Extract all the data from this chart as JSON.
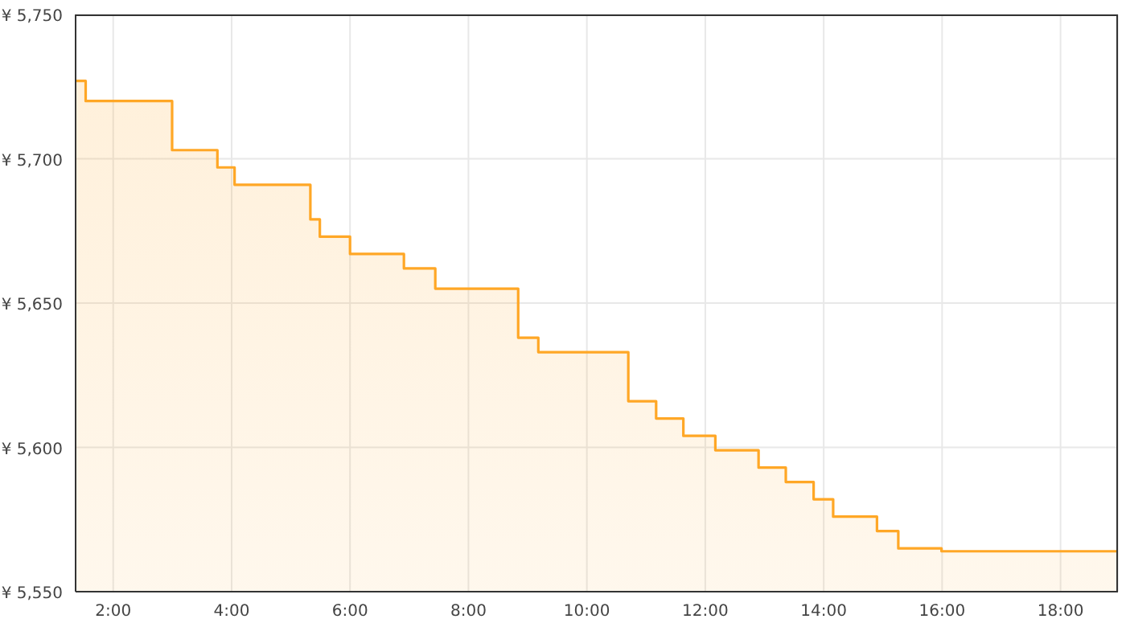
{
  "chart_data": {
    "type": "area",
    "x": [
      1.365,
      1.535,
      1.535,
      2.995,
      2.995,
      3.76,
      3.76,
      4.05,
      4.05,
      5.33,
      5.33,
      5.49,
      5.49,
      6.0,
      6.0,
      6.91,
      6.91,
      7.44,
      7.44,
      8.84,
      8.84,
      9.18,
      9.18,
      10.7,
      10.7,
      11.17,
      11.17,
      11.63,
      11.63,
      12.17,
      12.17,
      12.9,
      12.9,
      13.36,
      13.36,
      13.83,
      13.83,
      14.16,
      14.16,
      14.9,
      14.9,
      15.26,
      15.26,
      15.99,
      15.99,
      18.95
    ],
    "series": [
      {
        "color": "#ffa726",
        "values": [
          5727,
          5727,
          5720,
          5720,
          5703,
          5703,
          5697,
          5697,
          5691,
          5691,
          5679,
          5679,
          5673,
          5673,
          5667,
          5667,
          5662,
          5662,
          5655,
          5655,
          5638,
          5638,
          5633,
          5633,
          5616,
          5616,
          5610,
          5610,
          5604,
          5604,
          5599,
          5599,
          5593,
          5593,
          5588,
          5588,
          5582,
          5582,
          5576,
          5576,
          5571,
          5571,
          5565,
          5565,
          5564,
          5564
        ]
      }
    ],
    "xlim": [
      1.365,
      18.97
    ],
    "xticks": [
      {
        "value": 2,
        "label": "2:00"
      },
      {
        "value": 4,
        "label": "4:00"
      },
      {
        "value": 6,
        "label": "6:00"
      },
      {
        "value": 8,
        "label": "8:00"
      },
      {
        "value": 10,
        "label": "10:00"
      },
      {
        "value": 12,
        "label": "12:00"
      },
      {
        "value": 14,
        "label": "14:00"
      },
      {
        "value": 16,
        "label": "16:00"
      },
      {
        "value": 18,
        "label": "18:00"
      }
    ],
    "ylim": [
      5550,
      5750
    ],
    "yticks": [
      {
        "value": 5550,
        "label": "¥ 5,550"
      },
      {
        "value": 5600,
        "label": "¥ 5,600"
      },
      {
        "value": 5650,
        "label": "¥ 5,650"
      },
      {
        "value": 5700,
        "label": "¥ 5,700"
      },
      {
        "value": 5750,
        "label": "¥ 5,750"
      }
    ],
    "grid": true
  }
}
